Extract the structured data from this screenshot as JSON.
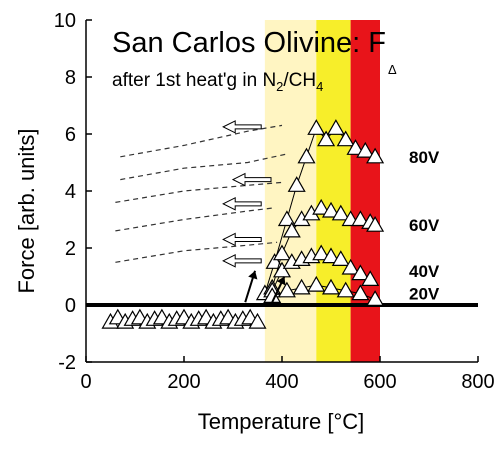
{
  "chart_data": {
    "type": "scatter",
    "title": "San Carlos Olivine: F",
    "title_superscript": "Δ",
    "subtitle": "after 1st heat'g in N",
    "subtitle_sub1": "2",
    "subtitle_mid": "/CH",
    "subtitle_sub2": "4",
    "xlabel": "Temperature [°C]",
    "ylabel": "Force [arb. units]",
    "xlim": [
      0,
      800
    ],
    "ylim": [
      -2,
      10
    ],
    "xticks": [
      "0",
      "200",
      "400",
      "600",
      "800"
    ],
    "yticks": [
      "-2",
      "0",
      "2",
      "4",
      "6",
      "8",
      "10"
    ],
    "grid": false,
    "shaded_bands": [
      {
        "from": 365,
        "to": 470,
        "color": "#fff5c2"
      },
      {
        "from": 470,
        "to": 540,
        "color": "#f7ee2a"
      },
      {
        "from": 540,
        "to": 600,
        "color": "#e8141a"
      }
    ],
    "zero_line": true,
    "baseline_series": {
      "x": [
        50,
        65,
        80,
        95,
        110,
        125,
        140,
        155,
        170,
        185,
        200,
        215,
        230,
        245,
        260,
        275,
        290,
        305,
        320,
        335,
        350
      ],
      "y": [
        -0.6,
        -0.45,
        -0.6,
        -0.5,
        -0.45,
        -0.6,
        -0.5,
        -0.45,
        -0.6,
        -0.5,
        -0.45,
        -0.6,
        -0.5,
        -0.45,
        -0.6,
        -0.5,
        -0.45,
        -0.6,
        -0.5,
        -0.45,
        -0.6
      ]
    },
    "series": [
      {
        "label": "80V",
        "x": [
          365,
          385,
          410,
          430,
          450,
          470,
          490,
          510,
          530,
          550,
          570,
          590
        ],
        "y": [
          0.4,
          1.5,
          3.0,
          4.2,
          5.2,
          6.2,
          5.8,
          6.2,
          5.8,
          5.5,
          5.4,
          5.2
        ]
      },
      {
        "label": "60V",
        "x": [
          380,
          400,
          420,
          440,
          460,
          480,
          500,
          520,
          540,
          560,
          580,
          590
        ],
        "y": [
          0.6,
          1.8,
          2.6,
          3.0,
          3.2,
          3.4,
          3.3,
          3.2,
          3.0,
          3.0,
          2.9,
          2.8
        ]
      },
      {
        "label": "40V",
        "x": [
          380,
          400,
          420,
          440,
          460,
          480,
          500,
          520,
          540,
          560,
          580
        ],
        "y": [
          0.5,
          1.2,
          1.5,
          1.6,
          1.7,
          1.8,
          1.7,
          1.6,
          1.3,
          1.1,
          0.9
        ]
      },
      {
        "label": "20V",
        "x": [
          380,
          410,
          440,
          470,
          500,
          530,
          560,
          590
        ],
        "y": [
          0.3,
          0.5,
          0.6,
          0.7,
          0.6,
          0.5,
          0.4,
          0.2
        ]
      }
    ],
    "series_labels_y": {
      "80V": 5.2,
      "60V": 2.8,
      "40V": 1.2,
      "20V": 0.4
    },
    "cooling_curves": [
      {
        "x": [
          70,
          200,
          330,
          400
        ],
        "y": [
          5.2,
          5.6,
          6.1,
          6.3
        ]
      },
      {
        "x": [
          70,
          200,
          330,
          410
        ],
        "y": [
          4.4,
          4.8,
          5.0,
          5.3
        ]
      },
      {
        "x": [
          60,
          200,
          330,
          400
        ],
        "y": [
          3.6,
          4.0,
          4.2,
          4.3
        ]
      },
      {
        "x": [
          60,
          200,
          330,
          380
        ],
        "y": [
          2.6,
          3.0,
          3.3,
          3.4
        ]
      },
      {
        "x": [
          60,
          200,
          330,
          390
        ],
        "y": [
          1.5,
          1.9,
          2.1,
          2.2
        ]
      }
    ],
    "cooling_arrows": [
      {
        "x": 280,
        "y": 6.25
      },
      {
        "x": 300,
        "y": 4.4
      },
      {
        "x": 280,
        "y": 3.55
      },
      {
        "x": 280,
        "y": 2.3
      },
      {
        "x": 280,
        "y": 1.55
      }
    ],
    "heating_arrows": [
      {
        "x0": 325,
        "y0": 0.1,
        "x1": 345,
        "y1": 1.2
      },
      {
        "x0": 380,
        "y0": 0.1,
        "x1": 405,
        "y1": 1.0
      }
    ]
  }
}
